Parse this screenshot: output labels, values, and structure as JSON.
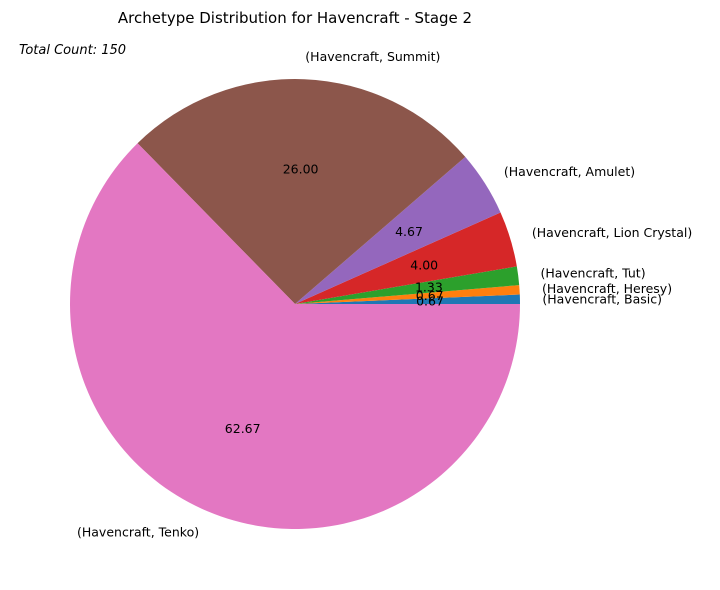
{
  "chart_data": {
    "type": "pie",
    "title": "Archetype Distribution for Havencraft - Stage 2",
    "annotation": "Total Count: 150",
    "slices": [
      {
        "label": "(Havencraft, Basic)",
        "value": 0.67,
        "value_label": "0.67",
        "color": "#1f77b4"
      },
      {
        "label": "(Havencraft, Heresy)",
        "value": 0.67,
        "value_label": "0.67",
        "color": "#ff7f0e"
      },
      {
        "label": "(Havencraft, Tut)",
        "value": 1.33,
        "value_label": "1.33",
        "color": "#2ca02c"
      },
      {
        "label": "(Havencraft, Lion Crystal)",
        "value": 4.0,
        "value_label": "4.00",
        "color": "#d62728"
      },
      {
        "label": "(Havencraft, Amulet)",
        "value": 4.67,
        "value_label": "4.67",
        "color": "#9467bd"
      },
      {
        "label": "(Havencraft, Summit)",
        "value": 26.0,
        "value_label": "26.00",
        "color": "#8c564b"
      },
      {
        "label": "(Havencraft, Tenko)",
        "value": 62.67,
        "value_label": "62.67",
        "color": "#e377c2"
      }
    ]
  }
}
